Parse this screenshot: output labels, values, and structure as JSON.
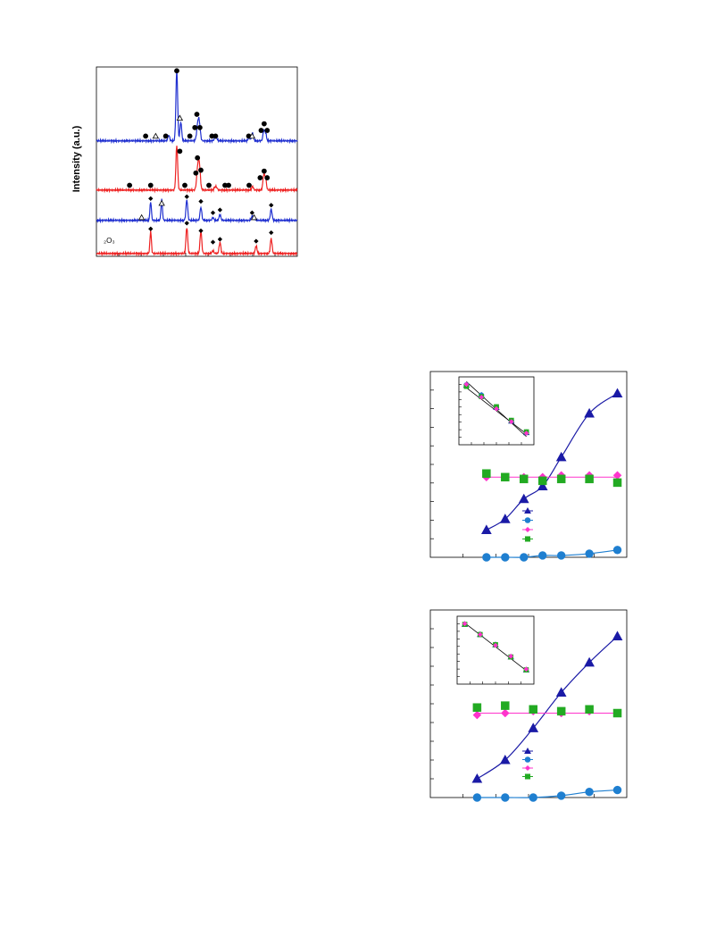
{
  "colors": {
    "blue_pattern": "#1f2fd0",
    "red_pattern": "#ee2222",
    "triangle_series": "#1a1aa6",
    "circle_series": "#1f7fd0",
    "diamond_series": "#ff33cc",
    "square_series": "#22aa22",
    "fit_line": "#ff33cc"
  },
  "xrd": {
    "ylabel": "Intensity (a.u.)",
    "fragment_label": "₂O₃"
  },
  "chart_data": [
    {
      "type": "line",
      "ylabel": "Intensity (a.u.)",
      "xlim": [
        0,
        100
      ],
      "ylim": [
        0,
        100
      ],
      "series": [
        {
          "offset": 61,
          "color": "#1f2fd0",
          "peaks": [
            [
              40,
              38,
              0.6
            ],
            [
              42,
              10,
              0.6
            ],
            [
              36,
              3,
              0.6
            ],
            [
              50.5,
              9,
              0.8
            ],
            [
              51.3,
              7,
              0.7
            ],
            [
              59,
              1.5,
              0.6
            ],
            [
              59.8,
              1.3,
              0.6
            ],
            [
              76,
              2,
              0.6
            ],
            [
              77.7,
              4,
              0.6
            ],
            [
              83.3,
              5,
              0.6
            ],
            [
              84.2,
              4,
              0.6
            ]
          ],
          "markers": [
            {
              "x": 40,
              "y": 98,
              "m": "circle"
            },
            {
              "x": 41.5,
              "y": 73,
              "m": "triangle"
            },
            {
              "x": 24.5,
              "y": 63.5,
              "m": "circle"
            },
            {
              "x": 29.5,
              "y": 63.5,
              "m": "triangle"
            },
            {
              "x": 34.5,
              "y": 63.5,
              "m": "circle"
            },
            {
              "x": 46.5,
              "y": 63.5,
              "m": "circle"
            },
            {
              "x": 49,
              "y": 68,
              "m": "circle"
            },
            {
              "x": 50,
              "y": 75,
              "m": "circle"
            },
            {
              "x": 51.5,
              "y": 68,
              "m": "circle"
            },
            {
              "x": 57.5,
              "y": 63.5,
              "m": "circle"
            },
            {
              "x": 59.3,
              "y": 63.5,
              "m": "circle"
            },
            {
              "x": 75.8,
              "y": 63.5,
              "m": "circle"
            },
            {
              "x": 77.5,
              "y": 63.5,
              "m": "triangle"
            },
            {
              "x": 82,
              "y": 66.5,
              "m": "circle"
            },
            {
              "x": 83.5,
              "y": 70,
              "m": "circle"
            },
            {
              "x": 85,
              "y": 66.5,
              "m": "circle"
            }
          ]
        },
        {
          "offset": 35,
          "color": "#ee2222",
          "peaks": [
            [
              40,
              24,
              0.6
            ],
            [
              50.5,
              12,
              0.8
            ],
            [
              51.3,
              10,
              0.7
            ],
            [
              59,
              1.5,
              0.6
            ],
            [
              59.8,
              1.3,
              0.6
            ],
            [
              77.7,
              2,
              0.6
            ],
            [
              83.3,
              8,
              0.6
            ],
            [
              84.2,
              6,
              0.6
            ]
          ],
          "markers": [
            {
              "x": 41.5,
              "y": 55.5,
              "m": "circle"
            },
            {
              "x": 16.5,
              "y": 37.5,
              "m": "circle"
            },
            {
              "x": 27,
              "y": 37.5,
              "m": "circle"
            },
            {
              "x": 44,
              "y": 37.5,
              "m": "circle"
            },
            {
              "x": 56,
              "y": 37.5,
              "m": "circle"
            },
            {
              "x": 49.5,
              "y": 44,
              "m": "circle"
            },
            {
              "x": 50.3,
              "y": 52,
              "m": "circle"
            },
            {
              "x": 52,
              "y": 45.5,
              "m": "circle"
            },
            {
              "x": 64,
              "y": 37.5,
              "m": "circle"
            },
            {
              "x": 65.8,
              "y": 37.5,
              "m": "circle"
            },
            {
              "x": 76,
              "y": 37.5,
              "m": "circle"
            },
            {
              "x": 81.5,
              "y": 41.5,
              "m": "circle"
            },
            {
              "x": 83.5,
              "y": 45,
              "m": "circle"
            },
            {
              "x": 85,
              "y": 41.5,
              "m": "circle"
            }
          ]
        },
        {
          "offset": 19,
          "color": "#1f2fd0",
          "peaks": [
            [
              27,
              10,
              0.5
            ],
            [
              32.5,
              11,
              0.5
            ],
            [
              45,
              11,
              0.6
            ],
            [
              52,
              7,
              0.6
            ],
            [
              58,
              1.5,
              0.6
            ],
            [
              61.5,
              3,
              0.6
            ],
            [
              77.5,
              2,
              0.7
            ],
            [
              78.5,
              1.5,
              0.6
            ],
            [
              87,
              6,
              0.6
            ]
          ],
          "markers": [
            {
              "x": 22.5,
              "y": 20.5,
              "m": "triangle"
            },
            {
              "x": 27,
              "y": 30.5,
              "m": "diamond"
            },
            {
              "x": 32.5,
              "y": 28,
              "m": "triangle"
            },
            {
              "x": 45,
              "y": 31.5,
              "m": "diamond"
            },
            {
              "x": 52,
              "y": 29,
              "m": "diamond"
            },
            {
              "x": 58,
              "y": 23,
              "m": "diamond"
            },
            {
              "x": 61.5,
              "y": 24.5,
              "m": "diamond"
            },
            {
              "x": 77.5,
              "y": 23,
              "m": "diamond"
            },
            {
              "x": 78.5,
              "y": 20.5,
              "m": "triangle"
            },
            {
              "x": 87,
              "y": 27,
              "m": "diamond"
            }
          ]
        },
        {
          "offset": 1.5,
          "color": "#ee2222",
          "peaks": [
            [
              27,
              12,
              0.5
            ],
            [
              45,
              14,
              0.6
            ],
            [
              52,
              12,
              0.6
            ],
            [
              58,
              1.5,
              0.6
            ],
            [
              61.5,
              6,
              0.6
            ],
            [
              79.5,
              4,
              0.6
            ],
            [
              87,
              8,
              0.6
            ]
          ],
          "markers": [
            {
              "x": 27,
              "y": 14.5,
              "m": "diamond"
            },
            {
              "x": 45,
              "y": 17.5,
              "m": "diamond"
            },
            {
              "x": 52,
              "y": 13.5,
              "m": "diamond"
            },
            {
              "x": 58,
              "y": 7.5,
              "m": "diamond"
            },
            {
              "x": 61.5,
              "y": 9,
              "m": "diamond"
            },
            {
              "x": 79.5,
              "y": 8,
              "m": "diamond"
            },
            {
              "x": 87,
              "y": 12.5,
              "m": "diamond"
            }
          ]
        }
      ]
    },
    {
      "type": "line",
      "xlim": [
        0,
        10.5
      ],
      "ylim": [
        -0.2,
        10.0
      ],
      "series": [
        {
          "marker": "triangle",
          "color": "#1a1aa6",
          "x": [
            3,
            4,
            5,
            6,
            7,
            8.5,
            10
          ],
          "y": [
            1.3,
            1.9,
            3.0,
            3.7,
            5.3,
            7.7,
            8.8
          ],
          "curve": true
        },
        {
          "marker": "circle",
          "color": "#1f7fd0",
          "x": [
            3,
            4,
            5,
            6,
            7,
            8.5,
            10
          ],
          "y": [
            -0.2,
            -0.2,
            -0.2,
            -0.1,
            -0.1,
            0.0,
            0.2
          ],
          "curve": true
        },
        {
          "marker": "diamond",
          "color": "#ff33cc",
          "x": [
            3,
            4,
            5,
            6,
            7,
            8.5,
            10
          ],
          "y": [
            4.2,
            4.2,
            4.2,
            4.2,
            4.3,
            4.3,
            4.3
          ],
          "flat_line": 4.2
        },
        {
          "marker": "square",
          "color": "#22aa22",
          "x": [
            3,
            4,
            5,
            6,
            7,
            8.5,
            10
          ],
          "y": [
            4.4,
            4.2,
            4.1,
            4.0,
            4.1,
            4.1,
            3.9
          ]
        }
      ],
      "inset": {
        "xlim": [
          0,
          10
        ],
        "ylim": [
          0,
          10
        ],
        "series": [
          {
            "marker": "triangle",
            "color": "#1a1aa6",
            "x": [
              1,
              3,
              5,
              7,
              9
            ],
            "y": [
              8.8,
              7.3,
              5.5,
              3.5,
              1.8
            ]
          },
          {
            "marker": "circle",
            "color": "#1f7fd0",
            "x": [
              1,
              3,
              5,
              7,
              9
            ],
            "y": [
              8.8,
              7.3,
              5.5,
              3.5,
              1.8
            ]
          },
          {
            "marker": "square",
            "color": "#22aa22",
            "x": [
              1,
              3,
              5,
              7,
              9
            ],
            "y": [
              8.6,
              7.1,
              5.6,
              3.6,
              1.9
            ]
          },
          {
            "marker": "diamond",
            "color": "#ff33cc",
            "x": [
              1,
              3,
              5,
              7,
              9
            ],
            "y": [
              8.9,
              7.0,
              5.3,
              3.4,
              1.7
            ]
          }
        ],
        "fit": [
          [
            1,
            9.3
          ],
          [
            9,
            1.2
          ]
        ],
        "fit2": [
          [
            1,
            8.4
          ],
          [
            9,
            1.6
          ]
        ]
      },
      "legend": [
        "triangle",
        "circle",
        "diamond",
        "square"
      ],
      "legend_position": "center"
    },
    {
      "type": "line",
      "xlim": [
        0,
        10.5
      ],
      "ylim": [
        0,
        10.0
      ],
      "series": [
        {
          "marker": "triangle",
          "color": "#1a1aa6",
          "x": [
            2.5,
            4,
            5.5,
            7,
            8.5,
            10
          ],
          "y": [
            1.0,
            2.0,
            3.7,
            5.6,
            7.2,
            8.6
          ],
          "curve": true
        },
        {
          "marker": "circle",
          "color": "#1f7fd0",
          "x": [
            2.5,
            4,
            5.5,
            7,
            8.5,
            10
          ],
          "y": [
            0.0,
            0.0,
            0.0,
            0.1,
            0.3,
            0.4
          ],
          "curve": true
        },
        {
          "marker": "diamond",
          "color": "#ff33cc",
          "x": [
            2.5,
            4,
            5.5,
            7,
            8.5,
            10
          ],
          "y": [
            4.4,
            4.5,
            4.6,
            4.5,
            4.6,
            4.5
          ],
          "flat_line": 4.5
        },
        {
          "marker": "square",
          "color": "#22aa22",
          "x": [
            2.5,
            4,
            5.5,
            7,
            8.5,
            10
          ],
          "y": [
            4.8,
            4.9,
            4.7,
            4.6,
            4.7,
            4.5
          ]
        }
      ],
      "inset": {
        "xlim": [
          0,
          10
        ],
        "ylim": [
          0,
          10
        ],
        "series": [
          {
            "marker": "triangle",
            "color": "#1a1aa6",
            "x": [
              1,
              3,
              5,
              7,
              9
            ],
            "y": [
              8.8,
              7.3,
              5.8,
              4.0,
              2.1
            ]
          },
          {
            "marker": "square",
            "color": "#22aa22",
            "x": [
              1,
              3,
              5,
              7,
              9
            ],
            "y": [
              8.8,
              7.3,
              5.8,
              4.0,
              2.1
            ]
          },
          {
            "marker": "diamond",
            "color": "#ff33cc",
            "x": [
              1,
              3,
              5,
              7,
              9
            ],
            "y": [
              8.9,
              7.3,
              5.7,
              4.1,
              2.2
            ]
          }
        ],
        "fit": [
          [
            1,
            9.0
          ],
          [
            9,
            2.0
          ]
        ]
      },
      "legend": [
        "triangle",
        "circle",
        "diamond",
        "square"
      ],
      "legend_position": "center"
    }
  ]
}
